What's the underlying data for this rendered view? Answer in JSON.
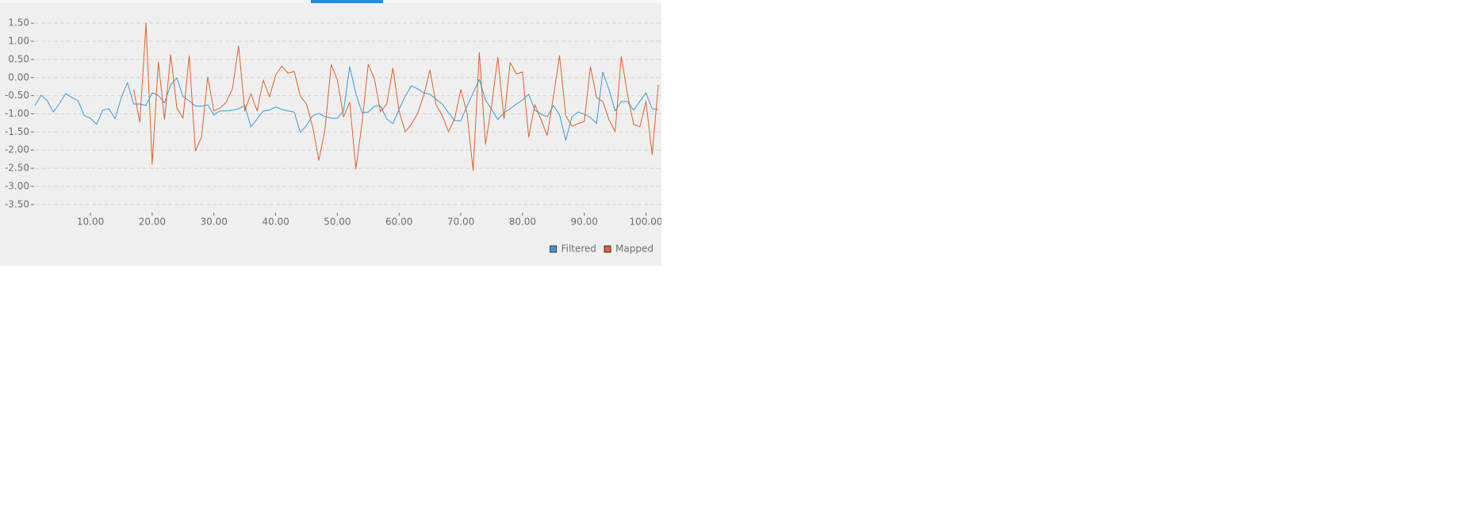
{
  "chart_data": {
    "type": "line",
    "x": [
      1,
      2,
      3,
      4,
      5,
      6,
      7,
      8,
      9,
      10,
      11,
      12,
      13,
      14,
      15,
      16,
      17,
      18,
      19,
      20,
      21,
      22,
      23,
      24,
      25,
      26,
      27,
      28,
      29,
      30,
      31,
      32,
      33,
      34,
      35,
      36,
      37,
      38,
      39,
      40,
      41,
      42,
      43,
      44,
      45,
      46,
      47,
      48,
      49,
      50,
      51,
      52,
      53,
      54,
      55,
      56,
      57,
      58,
      59,
      60,
      61,
      62,
      63,
      64,
      65,
      66,
      67,
      68,
      69,
      70,
      71,
      72,
      73,
      74,
      75,
      76,
      77,
      78,
      79,
      80,
      81,
      82,
      83,
      84,
      85,
      86,
      87,
      88,
      89,
      90,
      91,
      92,
      93,
      94,
      95,
      96,
      97,
      98,
      99,
      100,
      101,
      102
    ],
    "series": [
      {
        "name": "Filtered",
        "color": "#3a9ad9",
        "values": [
          -0.77,
          -0.49,
          -0.64,
          -0.95,
          -0.71,
          -0.44,
          -0.55,
          -0.64,
          -1.05,
          -1.12,
          -1.29,
          -0.9,
          -0.86,
          -1.14,
          -0.55,
          -0.14,
          -0.73,
          -0.73,
          -0.77,
          -0.42,
          -0.49,
          -0.7,
          -0.2,
          -0.01,
          -0.53,
          -0.64,
          -0.79,
          -0.79,
          -0.75,
          -1.03,
          -0.92,
          -0.92,
          -0.9,
          -0.86,
          -0.77,
          -1.36,
          -1.14,
          -0.92,
          -0.9,
          -0.81,
          -0.88,
          -0.92,
          -0.95,
          -1.51,
          -1.32,
          -1.05,
          -0.99,
          -1.08,
          -1.12,
          -1.12,
          -0.92,
          0.3,
          -0.44,
          -0.97,
          -0.95,
          -0.79,
          -0.79,
          -1.14,
          -1.27,
          -0.88,
          -0.51,
          -0.23,
          -0.31,
          -0.42,
          -0.46,
          -0.6,
          -0.73,
          -0.97,
          -1.19,
          -1.19,
          -0.79,
          -0.42,
          -0.05,
          -0.62,
          -0.88,
          -1.16,
          -0.97,
          -0.86,
          -0.73,
          -0.62,
          -0.46,
          -0.9,
          -1.01,
          -1.08,
          -0.77,
          -1.03,
          -1.73,
          -1.08,
          -0.95,
          -1.01,
          -1.1,
          -1.27,
          0.15,
          -0.33,
          -0.92,
          -0.66,
          -0.66,
          -0.9,
          -0.66,
          -0.42,
          -0.86,
          -0.88
        ]
      },
      {
        "name": "Mapped",
        "color": "#e0622a",
        "values": [
          null,
          null,
          null,
          null,
          null,
          null,
          null,
          null,
          null,
          null,
          null,
          null,
          null,
          null,
          null,
          null,
          -0.33,
          -1.23,
          1.5,
          -2.39,
          0.43,
          -1.16,
          0.63,
          -0.84,
          -1.12,
          0.6,
          -2.02,
          -1.64,
          0.02,
          -0.92,
          -0.84,
          -0.68,
          -0.31,
          0.87,
          -0.92,
          -0.44,
          -0.92,
          -0.07,
          -0.53,
          0.06,
          0.32,
          0.12,
          0.17,
          -0.51,
          -0.73,
          -1.36,
          -2.28,
          -1.43,
          0.36,
          -0.07,
          -1.08,
          -0.68,
          -2.52,
          -1.25,
          0.36,
          -0.03,
          -0.95,
          -0.73,
          0.26,
          -0.92,
          -1.49,
          -1.29,
          -0.99,
          -0.49,
          0.21,
          -0.75,
          -1.05,
          -1.49,
          -1.14,
          -0.33,
          -0.97,
          -2.56,
          0.69,
          -1.84,
          -0.75,
          0.56,
          -1.14,
          0.41,
          0.1,
          0.15,
          -1.64,
          -0.75,
          -1.16,
          -1.6,
          -0.53,
          0.6,
          -1.05,
          -1.34,
          -1.27,
          -1.21,
          0.3,
          -0.55,
          -0.66,
          -1.16,
          -1.49,
          0.58,
          -0.46,
          -1.29,
          -1.36,
          -0.66,
          -2.12,
          -0.2
        ]
      }
    ],
    "xlim": [
      1,
      102.5
    ],
    "ylim": [
      -3.7,
      1.7
    ],
    "xticks": [
      {
        "value": 10,
        "label": "10.00"
      },
      {
        "value": 20,
        "label": "20.00"
      },
      {
        "value": 30,
        "label": "30.00"
      },
      {
        "value": 40,
        "label": "40.00"
      },
      {
        "value": 50,
        "label": "50.00"
      },
      {
        "value": 60,
        "label": "60.00"
      },
      {
        "value": 70,
        "label": "70.00"
      },
      {
        "value": 80,
        "label": "80.00"
      },
      {
        "value": 90,
        "label": "90.00"
      },
      {
        "value": 100,
        "label": "100.00"
      }
    ],
    "yticks": [
      {
        "value": 1.5,
        "label": "1.50"
      },
      {
        "value": 1,
        "label": "1.00"
      },
      {
        "value": 0.5,
        "label": "0.50"
      },
      {
        "value": 0,
        "label": "0.00"
      },
      {
        "value": -0.5,
        "label": "-0.50"
      },
      {
        "value": -1,
        "label": "-1.00"
      },
      {
        "value": -1.5,
        "label": "-1.50"
      },
      {
        "value": -2,
        "label": "-2.00"
      },
      {
        "value": -2.5,
        "label": "-2.50"
      },
      {
        "value": -3,
        "label": "-3.00"
      },
      {
        "value": -3.5,
        "label": "-3.50"
      }
    ],
    "grid": true,
    "legend": "bottom-right"
  }
}
